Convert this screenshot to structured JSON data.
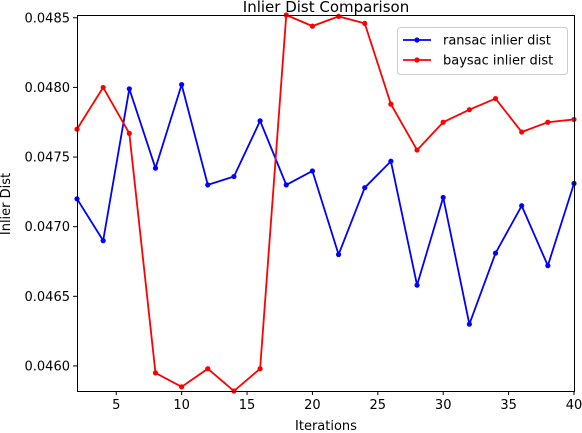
{
  "chart_data": {
    "type": "line",
    "title": "Inlier Dist Comparison",
    "xlabel": "Iterations",
    "ylabel": "Inlier Dist",
    "xlim": [
      2,
      40
    ],
    "ylim": [
      0.04582,
      0.04852
    ],
    "xticks": [
      5,
      10,
      15,
      20,
      25,
      30,
      35,
      40
    ],
    "yticks": [
      "0.0460",
      "0.0465",
      "0.0470",
      "0.0475",
      "0.0480",
      "0.0485"
    ],
    "ytick_values": [
      0.046,
      0.0465,
      0.047,
      0.0475,
      0.048,
      0.0485
    ],
    "grid": false,
    "legend": "top-right",
    "x": [
      2,
      4,
      6,
      8,
      10,
      12,
      14,
      16,
      18,
      20,
      22,
      24,
      26,
      28,
      30,
      32,
      34,
      36,
      38,
      40
    ],
    "series": [
      {
        "name": "ransac inlier dist",
        "color": "#0000ff",
        "values": [
          0.0472,
          0.0469,
          0.04799,
          0.04742,
          0.04802,
          0.0473,
          0.04736,
          0.04776,
          0.0473,
          0.0474,
          0.0468,
          0.04728,
          0.04747,
          0.04658,
          0.04721,
          0.0463,
          0.04681,
          0.04715,
          0.04672,
          0.04731
        ]
      },
      {
        "name": "baysac inlier dist",
        "color": "#ff0000",
        "values": [
          0.0477,
          0.048,
          0.04767,
          0.04595,
          0.04585,
          0.04598,
          0.04582,
          0.04598,
          0.04852,
          0.04844,
          0.04851,
          0.04846,
          0.04788,
          0.04755,
          0.04775,
          0.04784,
          0.04792,
          0.04768,
          0.04775,
          0.04777
        ]
      }
    ]
  }
}
